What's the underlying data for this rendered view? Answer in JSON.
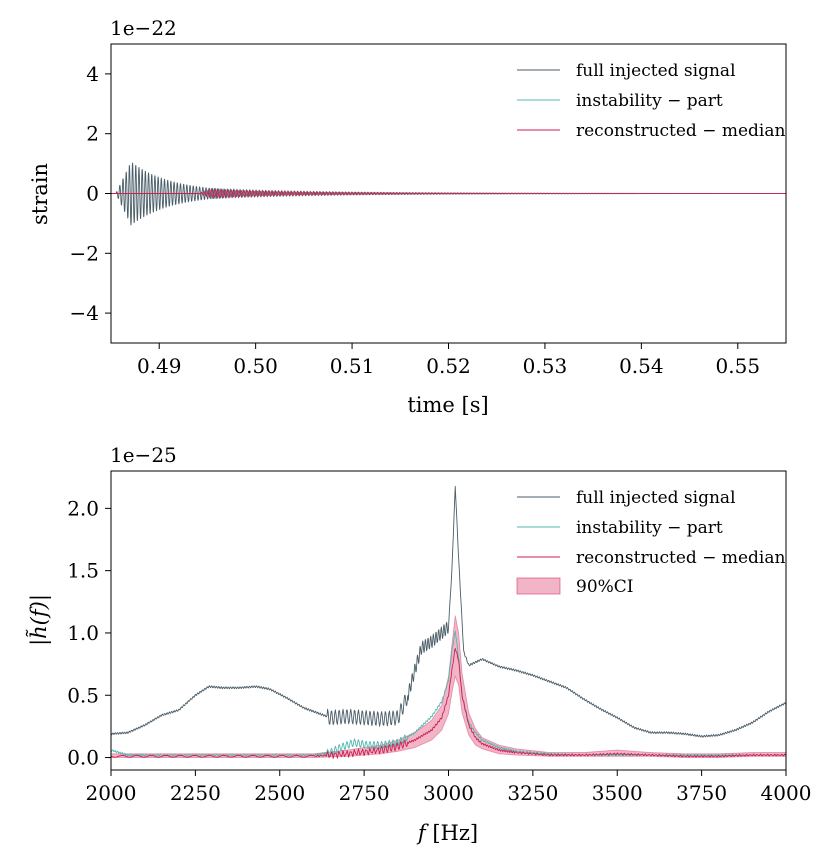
{
  "colors": {
    "full": "#4a5d68",
    "instability": "#4fb8b0",
    "reconstructed": "#cc1f4f",
    "ci_fill": "#e8799a"
  },
  "chart_data": [
    {
      "type": "line",
      "title": "",
      "offset_label": "1e−22",
      "xlabel": "time [s]",
      "ylabel": "strain",
      "xlim": [
        0.485,
        0.555
      ],
      "ylim": [
        -5,
        5
      ],
      "x_ticks": [
        0.49,
        0.5,
        0.51,
        0.52,
        0.53,
        0.54,
        0.55
      ],
      "x_tick_labels": [
        "0.49",
        "0.50",
        "0.51",
        "0.52",
        "0.53",
        "0.54",
        "0.55"
      ],
      "y_ticks": [
        -4,
        -2,
        0,
        2,
        4
      ],
      "y_tick_labels": [
        "−4",
        "−2",
        "0",
        "2",
        "4"
      ],
      "legend_position": "top-right",
      "series": [
        {
          "name": "full injected signal",
          "color_key": "full",
          "model": {
            "kind": "damped_oscillation",
            "t0": 0.4855,
            "t_end": 0.555,
            "amplitude": 1.0,
            "peak_time": 0.487,
            "decay_s": 0.004,
            "tail_amplitude": 0.08,
            "tail_decay_s": 0.02,
            "freq_hz": 3020
          }
        },
        {
          "name": "instability − part",
          "color_key": "instability",
          "model": {
            "kind": "damped_oscillation",
            "t0": 0.494,
            "t_end": 0.555,
            "amplitude": 0.18,
            "peak_time": 0.4955,
            "decay_s": 0.012,
            "tail_amplitude": 0.0,
            "tail_decay_s": 0.02,
            "freq_hz": 3020
          }
        },
        {
          "name": "reconstructed − median",
          "color_key": "reconstructed",
          "model": {
            "kind": "damped_oscillation",
            "t0": 0.494,
            "t_end": 0.555,
            "amplitude": 0.15,
            "peak_time": 0.4955,
            "decay_s": 0.012,
            "tail_amplitude": 0.0,
            "tail_decay_s": 0.02,
            "freq_hz": 3020
          }
        }
      ]
    },
    {
      "type": "line",
      "title": "",
      "offset_label": "1e−25",
      "xlabel": "f [Hz]",
      "xlabel_italic": "f",
      "xlabel_unit": " [Hz]",
      "ylabel": "|h̃(f)|",
      "xlim": [
        2000,
        4000
      ],
      "ylim": [
        -0.1,
        2.3
      ],
      "x_ticks": [
        2000,
        2250,
        2500,
        2750,
        3000,
        3250,
        3500,
        3750,
        4000
      ],
      "x_tick_labels": [
        "2000",
        "2250",
        "2500",
        "2750",
        "3000",
        "3250",
        "3500",
        "3750",
        "4000"
      ],
      "y_ticks": [
        0.0,
        0.5,
        1.0,
        1.5,
        2.0
      ],
      "y_tick_labels": [
        "0.0",
        "0.5",
        "1.0",
        "1.5",
        "2.0"
      ],
      "legend_position": "top-right",
      "series": [
        {
          "name": "full injected signal",
          "color_key": "full",
          "x": [
            2000,
            2050,
            2100,
            2150,
            2200,
            2250,
            2290,
            2330,
            2380,
            2430,
            2470,
            2520,
            2570,
            2610,
            2650,
            2700,
            2750,
            2800,
            2850,
            2880,
            2900,
            2920,
            2950,
            2980,
            3000,
            3010,
            3020,
            3030,
            3045,
            3060,
            3100,
            3150,
            3200,
            3250,
            3300,
            3350,
            3400,
            3450,
            3500,
            3550,
            3600,
            3650,
            3700,
            3750,
            3800,
            3850,
            3900,
            3950,
            4000
          ],
          "y": [
            0.19,
            0.2,
            0.26,
            0.34,
            0.38,
            0.5,
            0.57,
            0.56,
            0.56,
            0.57,
            0.55,
            0.48,
            0.4,
            0.36,
            0.32,
            0.33,
            0.32,
            0.31,
            0.32,
            0.5,
            0.7,
            0.88,
            0.93,
            1.0,
            1.05,
            1.5,
            2.18,
            1.6,
            0.85,
            0.74,
            0.79,
            0.73,
            0.7,
            0.66,
            0.61,
            0.56,
            0.47,
            0.39,
            0.32,
            0.24,
            0.2,
            0.2,
            0.19,
            0.17,
            0.18,
            0.22,
            0.28,
            0.37,
            0.44
          ]
        },
        {
          "name": "instability − part",
          "color_key": "instability",
          "x": [
            2000,
            2050,
            2100,
            2200,
            2300,
            2400,
            2500,
            2600,
            2650,
            2680,
            2720,
            2760,
            2800,
            2850,
            2900,
            2950,
            2980,
            3000,
            3010,
            3020,
            3030,
            3040,
            3060,
            3080,
            3100,
            3150,
            3200,
            3300,
            3400,
            3500,
            3600,
            3700,
            3800,
            3900,
            4000
          ],
          "y": [
            0.06,
            0.02,
            0.02,
            0.02,
            0.02,
            0.02,
            0.02,
            0.02,
            0.04,
            0.08,
            0.12,
            0.1,
            0.1,
            0.12,
            0.2,
            0.33,
            0.45,
            0.62,
            0.85,
            1.02,
            0.8,
            0.5,
            0.28,
            0.2,
            0.14,
            0.08,
            0.05,
            0.03,
            0.02,
            0.02,
            0.02,
            0.02,
            0.02,
            0.02,
            0.02
          ]
        },
        {
          "name": "reconstructed − median",
          "color_key": "reconstructed",
          "x": [
            2000,
            2200,
            2400,
            2600,
            2700,
            2800,
            2850,
            2900,
            2950,
            2980,
            3000,
            3010,
            3020,
            3030,
            3040,
            3060,
            3080,
            3100,
            3150,
            3200,
            3300,
            3400,
            3500,
            3600,
            3700,
            3800,
            3900,
            4000
          ],
          "y": [
            0.01,
            0.01,
            0.01,
            0.01,
            0.03,
            0.06,
            0.09,
            0.14,
            0.22,
            0.32,
            0.5,
            0.7,
            0.88,
            0.78,
            0.5,
            0.26,
            0.16,
            0.11,
            0.06,
            0.04,
            0.02,
            0.02,
            0.03,
            0.02,
            0.01,
            0.01,
            0.02,
            0.02
          ]
        },
        {
          "name": "90%CI",
          "color_key": "ci_fill",
          "kind": "band",
          "x": [
            2000,
            2200,
            2400,
            2600,
            2700,
            2800,
            2850,
            2900,
            2950,
            2980,
            3000,
            3010,
            3020,
            3030,
            3040,
            3060,
            3080,
            3100,
            3150,
            3200,
            3300,
            3400,
            3500,
            3600,
            3700,
            3800,
            3900,
            4000
          ],
          "lower": [
            0.0,
            0.0,
            0.0,
            0.0,
            0.01,
            0.03,
            0.05,
            0.08,
            0.14,
            0.22,
            0.35,
            0.52,
            0.65,
            0.58,
            0.36,
            0.18,
            0.1,
            0.07,
            0.03,
            0.02,
            0.01,
            0.01,
            0.01,
            0.01,
            0.0,
            0.0,
            0.01,
            0.01
          ],
          "upper": [
            0.03,
            0.03,
            0.03,
            0.03,
            0.06,
            0.1,
            0.14,
            0.2,
            0.3,
            0.42,
            0.65,
            0.9,
            1.14,
            1.0,
            0.68,
            0.36,
            0.23,
            0.16,
            0.1,
            0.07,
            0.04,
            0.04,
            0.06,
            0.04,
            0.03,
            0.03,
            0.04,
            0.04
          ]
        }
      ]
    }
  ]
}
